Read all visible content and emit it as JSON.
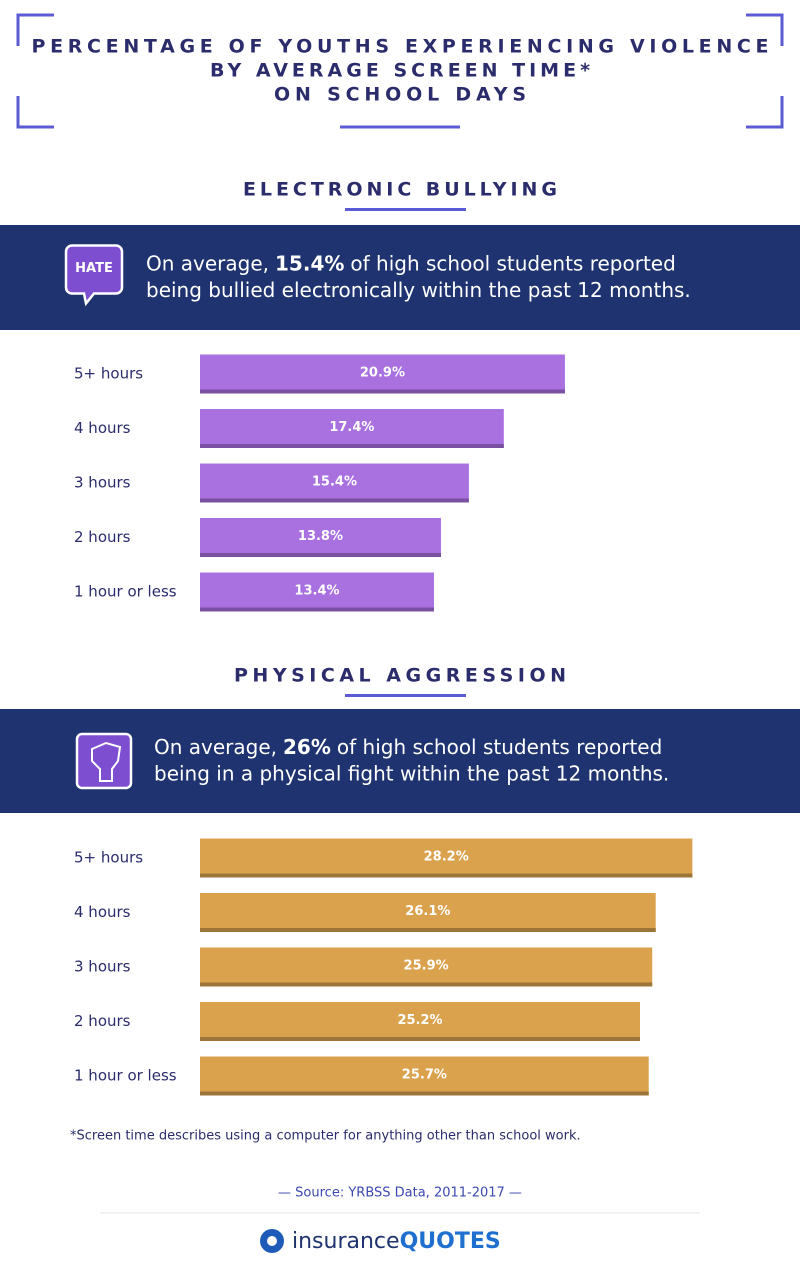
{
  "title": [
    "PERCENTAGE OF YOUTHS EXPERIENCING VIOLENCE",
    "BY AVERAGE SCREEN TIME*",
    "ON SCHOOL DAYS"
  ],
  "chart_data": [
    {
      "type": "bar",
      "orientation": "horizontal",
      "title": "ELECTRONIC BULLYING",
      "icon_text": "HATE",
      "annotation": {
        "before": "On average,",
        "highlight": "15.4%",
        "after_line1": "of high school students reported",
        "after_line2": "being bullied electronically within the past 12 months."
      },
      "categories": [
        "5+ hours",
        "4 hours",
        "3 hours",
        "2 hours",
        "1 hour or less"
      ],
      "values": [
        20.9,
        17.4,
        15.4,
        13.8,
        13.4
      ],
      "value_labels": [
        "20.9%",
        "17.4%",
        "15.4%",
        "13.8%",
        "13.4%"
      ],
      "color": "#a970e0"
    },
    {
      "type": "bar",
      "orientation": "horizontal",
      "title": "PHYSICAL AGGRESSION",
      "annotation": {
        "before": "On average,",
        "highlight": "26%",
        "after_line1": "of high school students reported",
        "after_line2": "being in a physical fight within the past 12 months."
      },
      "categories": [
        "5+ hours",
        "4 hours",
        "3 hours",
        "2 hours",
        "1 hour or less"
      ],
      "values": [
        28.2,
        26.1,
        25.9,
        25.2,
        25.7
      ],
      "value_labels": [
        "28.2%",
        "26.1%",
        "25.9%",
        "25.2%",
        "25.7%"
      ],
      "color": "#dba24e"
    }
  ],
  "footnote": "*Screen time describes using a computer for anything other than school work.",
  "source": "—  Source: YRBSS Data, 2011-2017 —",
  "logo": {
    "part1": "insurance",
    "part2": "QUOTES"
  }
}
